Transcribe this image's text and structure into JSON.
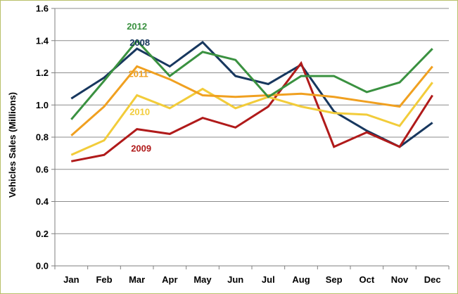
{
  "chart_data": {
    "type": "line",
    "title": "",
    "xlabel": "",
    "ylabel": "Vehicles Sales (Millions)",
    "ylim": [
      0,
      1.6
    ],
    "yticks": [
      "0.0",
      "0.2",
      "0.4",
      "0.6",
      "0.8",
      "1.0",
      "1.2",
      "1.4",
      "1.6"
    ],
    "grid": true,
    "legend": "inline labels",
    "categories": [
      "Jan",
      "Feb",
      "Mar",
      "Apr",
      "May",
      "Jun",
      "Jul",
      "Aug",
      "Sep",
      "Oct",
      "Nov",
      "Dec"
    ],
    "series": [
      {
        "name": "2008",
        "color": "#17375e",
        "values": [
          1.04,
          1.17,
          1.35,
          1.24,
          1.39,
          1.18,
          1.13,
          1.25,
          0.96,
          0.84,
          0.74,
          0.89
        ]
      },
      {
        "name": "2009",
        "color": "#b01a1a",
        "values": [
          0.65,
          0.69,
          0.85,
          0.82,
          0.92,
          0.86,
          0.99,
          1.26,
          0.74,
          0.83,
          0.74,
          1.06
        ]
      },
      {
        "name": "2010",
        "color": "#f2cc3a",
        "values": [
          0.69,
          0.78,
          1.06,
          0.98,
          1.1,
          0.98,
          1.05,
          0.99,
          0.95,
          0.94,
          0.87,
          1.14
        ]
      },
      {
        "name": "2011",
        "color": "#f0a020",
        "values": [
          0.81,
          0.99,
          1.24,
          1.16,
          1.06,
          1.05,
          1.06,
          1.07,
          1.05,
          1.02,
          0.99,
          1.24
        ]
      },
      {
        "name": "2012",
        "color": "#3a9140",
        "values": [
          0.91,
          1.15,
          1.4,
          1.18,
          1.33,
          1.28,
          1.05,
          1.18,
          1.18,
          1.08,
          1.14,
          1.35
        ]
      }
    ],
    "labels": [
      "2012",
      "2008",
      "2011",
      "2010",
      "2009"
    ]
  }
}
